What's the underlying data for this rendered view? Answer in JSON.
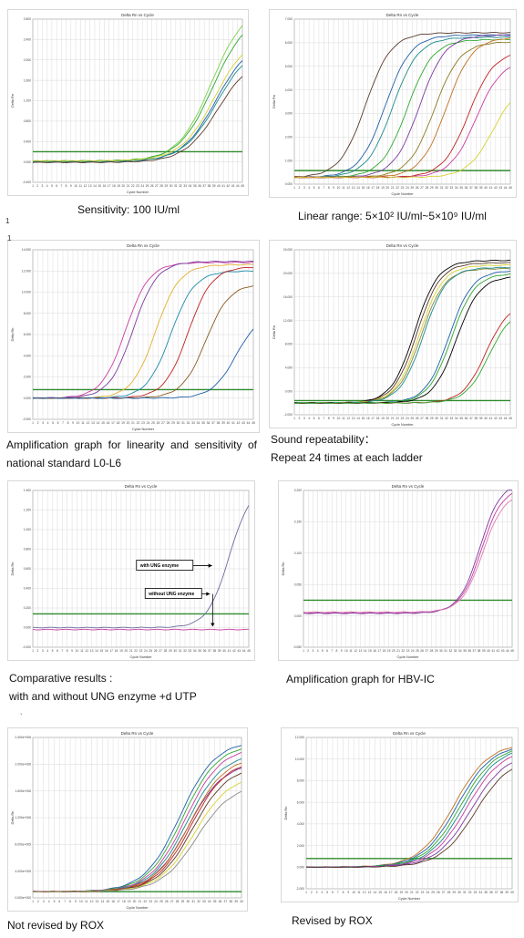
{
  "captions": {
    "sensitivity": "Sensitivity:  100 IU/ml",
    "linear_range": "Linear range:  5×10² IU/ml~5×10⁹ IU/ml",
    "linearity_line1": "Amplification graph for linearity and sensitivity of",
    "linearity_line2": "national standard L0-L6",
    "repeatability_line1": "Sound repeatability：",
    "repeatability_line2": "Repeat 24 times at each ladder",
    "comparative_line1": "Comparative results :",
    "comparative_line2": "with and without UNG enzyme +d UTP",
    "hbv_ic": "Amplification graph for HBV-IC",
    "not_revised": "Not revised by ROX",
    "revised": "Revised by ROX"
  },
  "stray_marks": {
    "m1": "1",
    "m2": "1",
    "m3": "`"
  },
  "colors": {
    "threshold": "#2e8b2e",
    "grid": "#d2d2d2",
    "palette": [
      "#5a3a2a",
      "#1f5fa8",
      "#1c8a8a",
      "#2fa82f",
      "#8a7a20",
      "#c07020",
      "#c02020",
      "#c83ca0",
      "#7a3aa0",
      "#d8d030"
    ]
  },
  "chart_data": [
    {
      "id": "sensitivity",
      "type": "line",
      "title": "Delta Rn vs Cycle",
      "xlabel": "Cycle Number",
      "ylabel": "Delta Rn",
      "x_ticks": [
        "1",
        "2",
        "3",
        "4",
        "5",
        "6",
        "7",
        "8",
        "9",
        "10",
        "11",
        "12",
        "13",
        "14",
        "15",
        "16",
        "17",
        "18",
        "19",
        "20",
        "21",
        "22",
        "23",
        "24",
        "25",
        "26",
        "27",
        "28",
        "29",
        "30",
        "31",
        "32",
        "33",
        "34",
        "35",
        "36",
        "37",
        "38",
        "39",
        "40",
        "41",
        "42",
        "43",
        "44",
        "45"
      ],
      "y_ticks": [
        "-0.400",
        "0.000",
        "0.400",
        "0.800",
        "1.200",
        "1.600",
        "2.000",
        "2.400",
        "2.800"
      ],
      "ylim": [
        -0.4,
        2.8
      ],
      "xlim": [
        1,
        45
      ],
      "threshold": 0.2,
      "series": [
        {
          "color": "#7ad04a",
          "ct": 38.5,
          "plateau": 3.1,
          "slope": 0.28,
          "base": 0.0
        },
        {
          "color": "#2fa82f",
          "ct": 38.8,
          "plateau": 2.9,
          "slope": 0.28,
          "base": 0.02
        },
        {
          "color": "#1f5fa8",
          "ct": 39.4,
          "plateau": 2.4,
          "slope": 0.28,
          "base": 0.0
        },
        {
          "color": "#1c8a8a",
          "ct": 39.6,
          "plateau": 2.3,
          "slope": 0.28,
          "base": 0.01
        },
        {
          "color": "#5a3a2a",
          "ct": 39.9,
          "plateau": 2.1,
          "slope": 0.28,
          "base": -0.01
        },
        {
          "color": "#d8d030",
          "ct": 39.2,
          "plateau": 2.5,
          "slope": 0.28,
          "base": 0.02
        }
      ]
    },
    {
      "id": "linear_range",
      "type": "line",
      "title": "Delta Rn vs Cycle",
      "xlabel": "Cycle Number",
      "ylabel": "Delta Rn",
      "x_ticks": [
        "1",
        "2",
        "3",
        "4",
        "5",
        "6",
        "7",
        "8",
        "9",
        "10",
        "11",
        "12",
        "13",
        "14",
        "15",
        "16",
        "17",
        "18",
        "19",
        "20",
        "21",
        "22",
        "23",
        "24",
        "25",
        "26",
        "27",
        "28",
        "29",
        "30",
        "31",
        "32",
        "33",
        "34",
        "35",
        "36",
        "37",
        "38",
        "39",
        "40",
        "41",
        "42",
        "43",
        "44",
        "45"
      ],
      "y_ticks": [
        "0.000",
        "1.000",
        "2.000",
        "3.000",
        "4.000",
        "5.000",
        "6.000",
        "7.000"
      ],
      "ylim": [
        -0.3,
        7.0
      ],
      "xlim": [
        1,
        45
      ],
      "threshold": 0.3,
      "series": [
        {
          "color": "#5a3a2a",
          "ct": 15.5,
          "plateau": 6.4,
          "slope": 0.38,
          "base": 0
        },
        {
          "color": "#1f5fa8",
          "ct": 19.5,
          "plateau": 6.3,
          "slope": 0.38,
          "base": 0
        },
        {
          "color": "#1c8a8a",
          "ct": 21.0,
          "plateau": 6.2,
          "slope": 0.38,
          "base": 0
        },
        {
          "color": "#2fa82f",
          "ct": 24.0,
          "plateau": 6.1,
          "slope": 0.38,
          "base": 0
        },
        {
          "color": "#7a3aa0",
          "ct": 26.5,
          "plateau": 6.3,
          "slope": 0.38,
          "base": 0
        },
        {
          "color": "#8a7a20",
          "ct": 29.5,
          "plateau": 6.0,
          "slope": 0.38,
          "base": 0
        },
        {
          "color": "#c07020",
          "ct": 32.0,
          "plateau": 6.2,
          "slope": 0.38,
          "base": 0
        },
        {
          "color": "#c02020",
          "ct": 36.5,
          "plateau": 5.6,
          "slope": 0.38,
          "base": 0
        },
        {
          "color": "#c83ca0",
          "ct": 38.0,
          "plateau": 5.2,
          "slope": 0.38,
          "base": 0
        },
        {
          "color": "#d8d030",
          "ct": 41.5,
          "plateau": 4.2,
          "slope": 0.38,
          "base": 0
        }
      ]
    },
    {
      "id": "linearity",
      "type": "line",
      "title": "Delta Rn vs Cycle",
      "xlabel": "Cycle Number",
      "ylabel": "Delta Rn",
      "x_ticks": [
        "1",
        "2",
        "3",
        "4",
        "5",
        "6",
        "7",
        "8",
        "9",
        "10",
        "11",
        "12",
        "13",
        "14",
        "15",
        "16",
        "17",
        "18",
        "19",
        "20",
        "21",
        "22",
        "23",
        "24",
        "25",
        "26",
        "27",
        "28",
        "29",
        "30",
        "31",
        "32",
        "33",
        "34",
        "35",
        "36",
        "37",
        "38",
        "39",
        "40",
        "41",
        "42",
        "43",
        "44",
        "45"
      ],
      "y_ticks": [
        "-2.000",
        "0.000",
        "2.000",
        "4.000",
        "6.000",
        "8.000",
        "10.000",
        "12.000",
        "14.000"
      ],
      "ylim": [
        -2.0,
        14.0
      ],
      "xlim": [
        1,
        45
      ],
      "threshold": 0.8,
      "series": [
        {
          "color": "#c83ca0",
          "ct": 19.5,
          "plateau": 12.8,
          "slope": 0.42,
          "base": 0
        },
        {
          "color": "#7a3aa0",
          "ct": 21.0,
          "plateau": 12.9,
          "slope": 0.42,
          "base": 0
        },
        {
          "color": "#e0b030",
          "ct": 25.5,
          "plateau": 12.6,
          "slope": 0.42,
          "base": 0
        },
        {
          "color": "#1c8aa8",
          "ct": 28.5,
          "plateau": 12.0,
          "slope": 0.42,
          "base": 0
        },
        {
          "color": "#c02020",
          "ct": 32.0,
          "plateau": 12.4,
          "slope": 0.42,
          "base": 0
        },
        {
          "color": "#8a5a20",
          "ct": 35.5,
          "plateau": 10.8,
          "slope": 0.42,
          "base": 0
        },
        {
          "color": "#1f5fa8",
          "ct": 41.5,
          "plateau": 8.0,
          "slope": 0.42,
          "base": 0
        }
      ]
    },
    {
      "id": "repeatability",
      "type": "line",
      "title": "Delta Rn vs Cycle",
      "xlabel": "Cycle Number",
      "ylabel": "Delta Rn",
      "x_ticks": [
        "1",
        "2",
        "3",
        "4",
        "5",
        "6",
        "7",
        "8",
        "9",
        "10",
        "11",
        "12",
        "13",
        "14",
        "15",
        "16",
        "17",
        "18",
        "19",
        "20",
        "21",
        "22",
        "23",
        "24",
        "25",
        "26",
        "27",
        "28",
        "29",
        "30",
        "31",
        "32",
        "33",
        "34",
        "35",
        "36",
        "37",
        "38",
        "39",
        "40",
        "41",
        "42",
        "43",
        "44",
        "45"
      ],
      "y_ticks": [
        "-2.000",
        "0.000",
        "4.000",
        "8.000",
        "12.000",
        "16.000",
        "20.000",
        "24.000"
      ],
      "ylim": [
        -2.0,
        26.0
      ],
      "xlim": [
        1,
        45
      ],
      "threshold": 0.4,
      "series": [
        {
          "color": "#000000",
          "ct": 25.5,
          "plateau": 24.2,
          "slope": 0.42,
          "base": 0
        },
        {
          "color": "#5a3a2a",
          "ct": 26.0,
          "plateau": 23.8,
          "slope": 0.42,
          "base": 0
        },
        {
          "color": "#d8d030",
          "ct": 26.5,
          "plateau": 23.4,
          "slope": 0.42,
          "base": 0
        },
        {
          "color": "#8a8a40",
          "ct": 26.8,
          "plateau": 22.8,
          "slope": 0.42,
          "base": 0
        },
        {
          "color": "#1c8a8a",
          "ct": 27.3,
          "plateau": 23.0,
          "slope": 0.42,
          "base": 0
        },
        {
          "color": "#1f5fa8",
          "ct": 32.5,
          "plateau": 22.5,
          "slope": 0.42,
          "base": 0
        },
        {
          "color": "#2fa82f",
          "ct": 33.0,
          "plateau": 22.0,
          "slope": 0.42,
          "base": 0
        },
        {
          "color": "#000000",
          "ct": 34.0,
          "plateau": 21.5,
          "slope": 0.42,
          "base": 0
        },
        {
          "color": "#c02020",
          "ct": 40.0,
          "plateau": 17.0,
          "slope": 0.42,
          "base": 0
        },
        {
          "color": "#2fa82f",
          "ct": 40.6,
          "plateau": 16.0,
          "slope": 0.42,
          "base": 0
        }
      ]
    },
    {
      "id": "comparative",
      "type": "line",
      "title": "Delta Rn vs Cycle",
      "xlabel": "Cycle Number",
      "ylabel": "Delta Rn",
      "x_ticks": [
        "1",
        "2",
        "3",
        "4",
        "5",
        "6",
        "7",
        "8",
        "9",
        "10",
        "11",
        "12",
        "13",
        "14",
        "15",
        "16",
        "17",
        "18",
        "19",
        "20",
        "21",
        "22",
        "23",
        "24",
        "25",
        "26",
        "27",
        "28",
        "29",
        "30",
        "31",
        "32",
        "33",
        "34",
        "35",
        "36",
        "37",
        "38",
        "39",
        "40",
        "41",
        "42",
        "43",
        "44",
        "45"
      ],
      "y_ticks": [
        "-0.200",
        "0.000",
        "0.200",
        "0.400",
        "0.600",
        "0.800",
        "1.000",
        "1.200",
        "1.400"
      ],
      "ylim": [
        -0.2,
        1.4
      ],
      "xlim": [
        1,
        45
      ],
      "threshold": 0.14,
      "series": [
        {
          "color": "#6a6aa0",
          "ct": 41.0,
          "plateau": 1.45,
          "slope": 0.45,
          "base": 0
        },
        {
          "color": "#c83ca0",
          "ct": 99.0,
          "plateau": 0.0,
          "slope": 0.45,
          "base": -0.02
        }
      ],
      "annotations": [
        "with UNG enzyme",
        "without UNG enzyme"
      ]
    },
    {
      "id": "hbv_ic",
      "type": "line",
      "title": "Delta Rn vs Cycle",
      "xlabel": "Cycle Number",
      "ylabel": "Delta Rn",
      "x_ticks": [
        "1",
        "2",
        "3",
        "4",
        "5",
        "6",
        "7",
        "8",
        "9",
        "10",
        "11",
        "12",
        "13",
        "14",
        "15",
        "16",
        "17",
        "18",
        "19",
        "20",
        "21",
        "22",
        "23",
        "24",
        "25",
        "26",
        "27",
        "28",
        "29",
        "30",
        "31",
        "32",
        "33",
        "34",
        "35",
        "36",
        "37",
        "38",
        "39",
        "40",
        "41",
        "42",
        "43",
        "44",
        "45"
      ],
      "y_ticks": [
        "-0.050",
        "0.000",
        "0.050",
        "0.100",
        "0.150",
        "0.200"
      ],
      "ylim": [
        -0.05,
        0.2
      ],
      "xlim": [
        1,
        45
      ],
      "threshold": 0.025,
      "series": [
        {
          "color": "#c83ca0",
          "ct": 38.5,
          "plateau": 0.2,
          "slope": 0.45,
          "base": 0.005
        },
        {
          "color": "#7a3aa0",
          "ct": 38.2,
          "plateau": 0.21,
          "slope": 0.45,
          "base": 0.004
        },
        {
          "color": "#e07ab0",
          "ct": 38.8,
          "plateau": 0.19,
          "slope": 0.45,
          "base": 0.006
        }
      ]
    },
    {
      "id": "not_revised",
      "type": "line",
      "title": "Delta Rn vs Cycle",
      "xlabel": "Cycle Number",
      "ylabel": "Delta Rn",
      "x_ticks": [
        "1",
        "2",
        "3",
        "4",
        "5",
        "6",
        "7",
        "8",
        "9",
        "10",
        "11",
        "12",
        "13",
        "14",
        "15",
        "16",
        "17",
        "18",
        "19",
        "20",
        "21",
        "22",
        "23",
        "24",
        "25",
        "26",
        "27",
        "28",
        "29",
        "30",
        "31",
        "32",
        "33",
        "34",
        "35",
        "36",
        "37",
        "38",
        "39",
        "40"
      ],
      "y_ticks": [
        "0.000e+000",
        "4.000e+005",
        "8.000e+005",
        "1.200e+006",
        "1.600e+006",
        "2.000e+006",
        "2.400e+006"
      ],
      "ylim": [
        -0.1,
        2.5
      ],
      "xlim": [
        1,
        40
      ],
      "threshold": 0.0,
      "series": [
        {
          "color": "#1f5fa8",
          "ct": 28.5,
          "plateau": 2.45,
          "slope": 0.3,
          "base": 0
        },
        {
          "color": "#2fa82f",
          "ct": 29.0,
          "plateau": 2.4,
          "slope": 0.3,
          "base": 0
        },
        {
          "color": "#c83ca0",
          "ct": 29.5,
          "plateau": 2.35,
          "slope": 0.3,
          "base": 0
        },
        {
          "color": "#1c8a8a",
          "ct": 29.8,
          "plateau": 2.25,
          "slope": 0.3,
          "base": 0
        },
        {
          "color": "#7a3aa0",
          "ct": 30.0,
          "plateau": 2.1,
          "slope": 0.3,
          "base": 0
        },
        {
          "color": "#c07020",
          "ct": 30.3,
          "plateau": 2.2,
          "slope": 0.3,
          "base": 0
        },
        {
          "color": "#c02020",
          "ct": 30.6,
          "plateau": 2.15,
          "slope": 0.3,
          "base": 0
        },
        {
          "color": "#5a3a2a",
          "ct": 30.9,
          "plateau": 2.05,
          "slope": 0.3,
          "base": 0
        },
        {
          "color": "#d8d030",
          "ct": 31.2,
          "plateau": 1.9,
          "slope": 0.3,
          "base": 0
        },
        {
          "color": "#8a8a8a",
          "ct": 31.6,
          "plateau": 1.75,
          "slope": 0.3,
          "base": 0
        }
      ]
    },
    {
      "id": "revised",
      "type": "line",
      "title": "Delta Rn vs Cycle",
      "xlabel": "Cycle Number",
      "ylabel": "Delta Rn",
      "x_ticks": [
        "1",
        "2",
        "3",
        "4",
        "5",
        "6",
        "7",
        "8",
        "9",
        "10",
        "11",
        "12",
        "13",
        "14",
        "15",
        "16",
        "17",
        "18",
        "19",
        "20",
        "21",
        "22",
        "23",
        "24",
        "25",
        "26",
        "27",
        "28",
        "29",
        "30",
        "31",
        "32",
        "33",
        "34",
        "35",
        "36",
        "37",
        "38",
        "39",
        "40"
      ],
      "y_ticks": [
        "-2.000",
        "0.000",
        "2.000",
        "4.000",
        "6.000",
        "8.000",
        "10.000",
        "12.000"
      ],
      "ylim": [
        -2.0,
        12.0
      ],
      "xlim": [
        1,
        40
      ],
      "threshold": 0.8,
      "series": [
        {
          "color": "#c07020",
          "ct": 29.0,
          "plateau": 11.5,
          "slope": 0.3,
          "base": 0
        },
        {
          "color": "#1f5fa8",
          "ct": 29.6,
          "plateau": 11.4,
          "slope": 0.3,
          "base": 0
        },
        {
          "color": "#2fa82f",
          "ct": 30.2,
          "plateau": 11.3,
          "slope": 0.3,
          "base": 0
        },
        {
          "color": "#1c8a8a",
          "ct": 30.8,
          "plateau": 11.2,
          "slope": 0.3,
          "base": 0
        },
        {
          "color": "#c83ca0",
          "ct": 31.4,
          "plateau": 11.0,
          "slope": 0.3,
          "base": 0
        },
        {
          "color": "#7a3aa0",
          "ct": 32.2,
          "plateau": 10.6,
          "slope": 0.3,
          "base": 0
        },
        {
          "color": "#5a3a2a",
          "ct": 33.0,
          "plateau": 10.2,
          "slope": 0.3,
          "base": 0
        }
      ]
    }
  ]
}
